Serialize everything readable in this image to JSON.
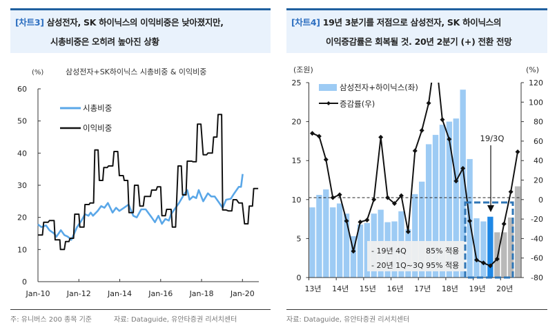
{
  "left": {
    "tag": "[차트3]",
    "title_line1": "삼성전자, SK 하이닉스의 이익비중은 낮아졌지만,",
    "title_line2": "시총비중은 오히려 높아진 상황",
    "note": "주: 유니버스 200 종목 기준",
    "source": "자료: Dataguide, 유안타증권 리서치센터"
  },
  "right": {
    "tag": "[차트4]",
    "title_line1": "19년 3분기를 저점으로 삼성전자, SK 하이닉스의",
    "title_line2": "이익증감률은 회복될 것. 20년 2분기 (+) 전환 전망",
    "source": "자료: Dataguide, 유안타증권 리서치센터"
  },
  "chart_data": [
    {
      "type": "line",
      "title": "삼성전자+SK하이닉스 시총비중 & 이익비중",
      "ylabel": "(%)",
      "ylim": [
        0,
        60
      ],
      "yticks": [
        "0",
        "10",
        "20",
        "30",
        "40",
        "50",
        "60"
      ],
      "xlim": [
        2010,
        2020.8
      ],
      "xticks": [
        {
          "x": 2010,
          "label": "Jan-10"
        },
        {
          "x": 2012,
          "label": "Jan-12"
        },
        {
          "x": 2014,
          "label": "Jan-14"
        },
        {
          "x": 2016,
          "label": "Jan-16"
        },
        {
          "x": 2018,
          "label": "Jan-18"
        },
        {
          "x": 2020,
          "label": "Jan-20"
        }
      ],
      "legend_position": "top-left",
      "series": [
        {
          "name": "시총비중",
          "color": "#5aa7e8",
          "points": [
            [
              2010.0,
              17.8
            ],
            [
              2010.17,
              17
            ],
            [
              2010.39,
              17.5
            ],
            [
              2010.56,
              16
            ],
            [
              2010.79,
              15
            ],
            [
              2010.9,
              14
            ],
            [
              2011.12,
              16
            ],
            [
              2011.29,
              14.5
            ],
            [
              2011.46,
              14
            ],
            [
              2011.63,
              13
            ],
            [
              2011.74,
              14.5
            ],
            [
              2011.91,
              17
            ],
            [
              2012.13,
              19
            ],
            [
              2012.3,
              21
            ],
            [
              2012.47,
              20.5
            ],
            [
              2012.58,
              21.5
            ],
            [
              2012.69,
              20.5
            ],
            [
              2012.92,
              22
            ],
            [
              2013.09,
              23.5
            ],
            [
              2013.25,
              23
            ],
            [
              2013.42,
              24.5
            ],
            [
              2013.65,
              21.5
            ],
            [
              2013.82,
              23
            ],
            [
              2013.98,
              22
            ],
            [
              2014.21,
              23
            ],
            [
              2014.43,
              24
            ],
            [
              2014.66,
              20.5
            ],
            [
              2014.83,
              20
            ],
            [
              2015.05,
              22.5
            ],
            [
              2015.27,
              22.5
            ],
            [
              2015.56,
              20
            ],
            [
              2015.72,
              18.5
            ],
            [
              2015.89,
              20.5
            ],
            [
              2016.06,
              18
            ],
            [
              2016.23,
              19.5
            ],
            [
              2016.4,
              19
            ],
            [
              2016.51,
              21
            ],
            [
              2016.73,
              23
            ],
            [
              2016.9,
              24.5
            ],
            [
              2017.13,
              27
            ],
            [
              2017.3,
              28.5
            ],
            [
              2017.41,
              25.5
            ],
            [
              2017.58,
              26.5
            ],
            [
              2017.74,
              26
            ],
            [
              2017.86,
              28.5
            ],
            [
              2018.08,
              25
            ],
            [
              2018.31,
              27.5
            ],
            [
              2018.47,
              26.5
            ],
            [
              2018.64,
              26.5
            ],
            [
              2018.81,
              25
            ],
            [
              2019.03,
              23
            ],
            [
              2019.2,
              25.5
            ],
            [
              2019.43,
              25.8
            ],
            [
              2019.6,
              27.5
            ],
            [
              2019.82,
              29.5
            ],
            [
              2019.93,
              29.5
            ],
            [
              2020.01,
              33.5
            ]
          ]
        },
        {
          "name": "이익비중",
          "color": "#111111",
          "points": [
            [
              2010.0,
              14.5
            ],
            [
              2010.22,
              14.5
            ],
            [
              2010.28,
              18.5
            ],
            [
              2010.5,
              18.5
            ],
            [
              2010.56,
              19
            ],
            [
              2010.79,
              19
            ],
            [
              2010.84,
              13
            ],
            [
              2011.07,
              13
            ],
            [
              2011.1,
              10
            ],
            [
              2011.29,
              10
            ],
            [
              2011.35,
              12.5
            ],
            [
              2011.52,
              12.5
            ],
            [
              2011.57,
              13.5
            ],
            [
              2011.74,
              13.5
            ],
            [
              2011.8,
              21
            ],
            [
              2012.0,
              21
            ],
            [
              2012.05,
              17
            ],
            [
              2012.25,
              17
            ],
            [
              2012.3,
              24
            ],
            [
              2012.5,
              24
            ],
            [
              2012.55,
              24.5
            ],
            [
              2012.72,
              24.5
            ],
            [
              2012.78,
              41
            ],
            [
              2012.94,
              41
            ],
            [
              2013.0,
              31.5
            ],
            [
              2013.17,
              31.5
            ],
            [
              2013.22,
              35.5
            ],
            [
              2013.39,
              35.5
            ],
            [
              2013.45,
              36
            ],
            [
              2013.66,
              36
            ],
            [
              2013.72,
              40.5
            ],
            [
              2013.9,
              40.5
            ],
            [
              2013.98,
              33
            ],
            [
              2014.17,
              33
            ],
            [
              2014.22,
              31.5
            ],
            [
              2014.39,
              31.5
            ],
            [
              2014.45,
              21.5
            ],
            [
              2014.66,
              21.5
            ],
            [
              2014.72,
              30
            ],
            [
              2014.9,
              30
            ],
            [
              2014.98,
              23.5
            ],
            [
              2015.15,
              23.5
            ],
            [
              2015.21,
              26.5
            ],
            [
              2015.5,
              26.5
            ],
            [
              2015.56,
              28.5
            ],
            [
              2015.78,
              28.5
            ],
            [
              2015.84,
              29.5
            ],
            [
              2016.0,
              29.5
            ],
            [
              2016.06,
              20.5
            ],
            [
              2016.23,
              20.5
            ],
            [
              2016.29,
              22.5
            ],
            [
              2016.51,
              22.5
            ],
            [
              2016.57,
              17
            ],
            [
              2016.73,
              17
            ],
            [
              2016.85,
              36
            ],
            [
              2017.01,
              36
            ],
            [
              2017.07,
              27
            ],
            [
              2017.24,
              27
            ],
            [
              2017.3,
              37.5
            ],
            [
              2017.52,
              37.5
            ],
            [
              2017.58,
              37.3
            ],
            [
              2017.74,
              37.3
            ],
            [
              2017.8,
              49
            ],
            [
              2017.97,
              49
            ],
            [
              2018.08,
              39.5
            ],
            [
              2018.25,
              39.5
            ],
            [
              2018.31,
              40
            ],
            [
              2018.53,
              40
            ],
            [
              2018.59,
              45
            ],
            [
              2018.75,
              45
            ],
            [
              2018.81,
              52
            ],
            [
              2018.98,
              52
            ],
            [
              2019.03,
              22.3
            ],
            [
              2019.2,
              22.3
            ],
            [
              2019.32,
              22
            ],
            [
              2019.48,
              22
            ],
            [
              2019.54,
              25.5
            ],
            [
              2019.71,
              25.5
            ],
            [
              2019.82,
              24.5
            ],
            [
              2019.99,
              24.5
            ],
            [
              2020.1,
              18
            ],
            [
              2020.27,
              18
            ],
            [
              2020.33,
              23.5
            ],
            [
              2020.49,
              23.5
            ],
            [
              2020.55,
              29
            ],
            [
              2020.77,
              29
            ]
          ]
        }
      ]
    },
    {
      "type": "bar+line",
      "ylabel_left": "(조원)",
      "ylabel_right": "(%)",
      "ylim_left": [
        0,
        25
      ],
      "ylim_right": [
        -80,
        120
      ],
      "yticks_left": [
        "0",
        "5",
        "10",
        "15",
        "20",
        "25"
      ],
      "yticks_right": [
        "-80",
        "-60",
        "-40",
        "-20",
        "0",
        "20",
        "40",
        "60",
        "80",
        "100",
        "120"
      ],
      "xticks": [
        "13년",
        "14년",
        "15년",
        "16년",
        "17년",
        "18년",
        "19년",
        "20년"
      ],
      "legend_position": "top-left",
      "bar_series": {
        "name": "삼성전자+하이닉스(좌)",
        "color": "#9dcbf4",
        "highlight_color": "#1f88e5",
        "forecast_color": "#b9b9b9",
        "values": [
          9.0,
          10.6,
          11.3,
          9.0,
          9.5,
          8.2,
          5.3,
          6.8,
          7.0,
          8.2,
          8.7,
          7.1,
          7.2,
          8.5,
          6.2,
          10.7,
          12.3,
          17.1,
          18.3,
          19.6,
          20.0,
          20.4,
          24.1,
          15.2,
          7.6,
          7.2,
          7.8,
          5.8,
          5.8,
          7.7,
          11.7
        ],
        "highlight_index": 26,
        "forecast_from_index": 27
      },
      "line_series": {
        "name": "증감률(우)",
        "color": "#111111",
        "values": [
          68,
          65,
          41,
          2,
          5,
          -22,
          -53,
          -23,
          -21,
          0,
          64,
          2,
          -4,
          4,
          -33,
          50,
          71,
          99,
          150,
          82,
          62,
          19,
          32,
          -22,
          -62,
          -65,
          -68,
          -61,
          -25,
          8,
          49
        ]
      },
      "reference_line": 0,
      "annotation": "19/3Q",
      "note_lines": [
        [
          "- 19년 4Q",
          "85% 적용"
        ],
        [
          "- 20년 1Q~3Q 95% 적용",
          ""
        ]
      ]
    }
  ]
}
